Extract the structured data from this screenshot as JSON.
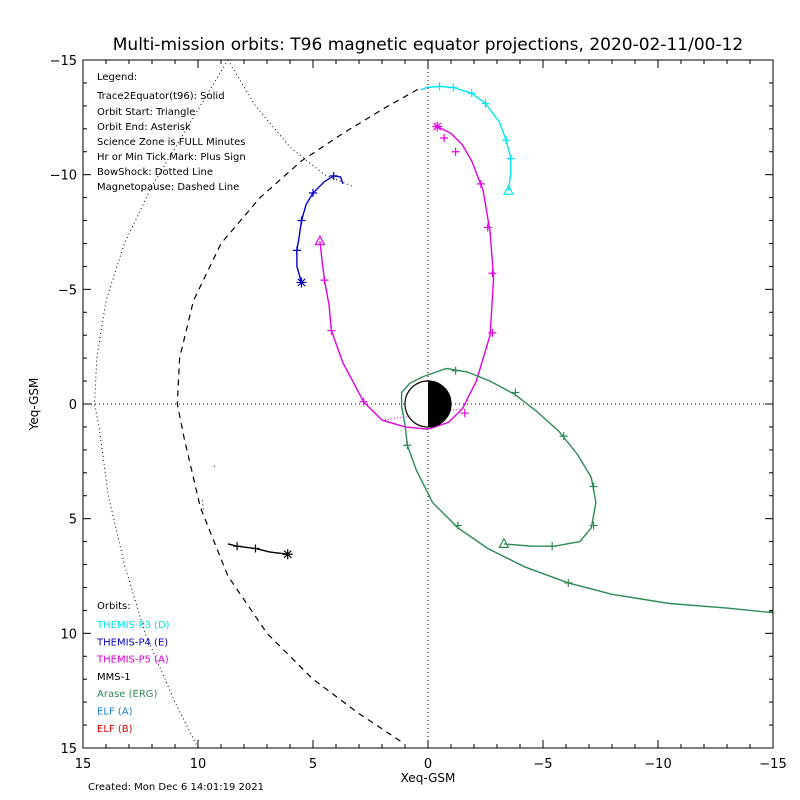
{
  "chart_data": {
    "type": "line",
    "title": "Multi-mission orbits: T96 magnetic equator projections, 2020-02-11/00-12",
    "xlabel": "Xeq-GSM",
    "ylabel": "Yeq-GSM",
    "xlim": [
      15,
      -15
    ],
    "ylim": [
      -15,
      15
    ],
    "xticks": [
      15,
      10,
      5,
      0,
      -5,
      -10,
      -15
    ],
    "yticks": [
      -15,
      -10,
      -5,
      0,
      5,
      10,
      15
    ],
    "grid": false,
    "legend": {
      "heading": "Legend:",
      "lines": [
        "Trace2Equator(t96): Solid",
        "Orbit Start: Triangle",
        "Orbit End: Asterisk",
        "Science Zone is FULL Minutes",
        "Hr or Min Tick Mark: Plus Sign",
        "BowShock: Dotted Line",
        "Magnetopause: Dashed Line"
      ]
    },
    "orbits_heading": "Orbits:",
    "missions": [
      {
        "label": "THEMIS-P3 (D)",
        "color": "#00e5ee"
      },
      {
        "label": "THEMIS-P4 (E)",
        "color": "#0000cc"
      },
      {
        "label": "THEMIS-P5 (A)",
        "color": "#e000e0"
      },
      {
        "label": "MMS-1",
        "color": "#000000"
      },
      {
        "label": "Arase (ERG)",
        "color": "#2e8b57"
      },
      {
        "label": "ELF (A)",
        "color": "#1e7fdc"
      },
      {
        "label": "ELF (B)",
        "color": "#dd0000"
      }
    ],
    "series": [
      {
        "name": "THEMIS-P3 (D)",
        "color": "#00e5ee",
        "style": "solid",
        "points": [
          [
            -3.5,
            -9.3
          ],
          [
            -3.6,
            -10.1
          ],
          [
            -3.6,
            -10.7
          ],
          [
            -3.4,
            -11.5
          ],
          [
            -3.1,
            -12.3
          ],
          [
            -2.5,
            -13.1
          ],
          [
            -1.9,
            -13.55
          ],
          [
            -1.1,
            -13.8
          ],
          [
            -0.5,
            -13.85
          ],
          [
            0.05,
            -13.8
          ],
          [
            0.3,
            -13.7
          ]
        ],
        "ticks": [
          [
            -3.6,
            -10.7
          ],
          [
            -3.4,
            -11.5
          ],
          [
            -2.5,
            -13.1
          ],
          [
            -1.9,
            -13.55
          ],
          [
            -1.1,
            -13.8
          ],
          [
            -0.5,
            -13.85
          ]
        ],
        "start": [
          -3.5,
          -9.3
        ],
        "end": null
      },
      {
        "name": "THEMIS-P4 (E)",
        "color": "#0000cc",
        "style": "solid",
        "points": [
          [
            5.5,
            -5.3
          ],
          [
            5.7,
            -6.0
          ],
          [
            5.7,
            -6.7
          ],
          [
            5.6,
            -7.3
          ],
          [
            5.5,
            -8.0
          ],
          [
            5.3,
            -8.7
          ],
          [
            5.0,
            -9.2
          ],
          [
            4.5,
            -9.7
          ],
          [
            4.1,
            -9.95
          ],
          [
            3.8,
            -9.9
          ],
          [
            3.7,
            -9.6
          ]
        ],
        "ticks": [
          [
            5.7,
            -6.7
          ],
          [
            5.5,
            -8.0
          ],
          [
            5.0,
            -9.2
          ],
          [
            4.1,
            -9.95
          ]
        ],
        "start": null,
        "end": [
          5.5,
          -5.3
        ]
      },
      {
        "name": "THEMIS-P5 (A)",
        "color": "#e000e0",
        "style": "solid",
        "points": [
          [
            4.7,
            -7.1
          ],
          [
            4.6,
            -6.2
          ],
          [
            4.5,
            -5.4
          ],
          [
            4.3,
            -4.3
          ],
          [
            4.2,
            -3.2
          ],
          [
            3.7,
            -1.8
          ],
          [
            2.8,
            -0.1
          ],
          [
            2.0,
            0.7
          ],
          [
            1.0,
            1.0
          ],
          [
            0.0,
            1.1
          ],
          [
            -0.9,
            0.8
          ],
          [
            -1.5,
            0.2
          ],
          [
            -2.1,
            -1.0
          ],
          [
            -2.7,
            -3.0
          ],
          [
            -2.85,
            -5.5
          ],
          [
            -2.7,
            -7.5
          ],
          [
            -2.4,
            -9.3
          ],
          [
            -1.9,
            -10.6
          ],
          [
            -1.5,
            -11.3
          ],
          [
            -1.0,
            -11.8
          ],
          [
            -0.4,
            -12.1
          ]
        ],
        "dotted_between": [
          [
            2.0,
            0.7
          ],
          [
            -1.5,
            0.2
          ]
        ],
        "ticks": [
          [
            4.5,
            -5.4
          ],
          [
            4.2,
            -3.2
          ],
          [
            2.8,
            -0.1
          ],
          [
            -1.6,
            0.4
          ],
          [
            -2.8,
            -3.1
          ],
          [
            -2.8,
            -5.7
          ],
          [
            -2.6,
            -7.7
          ],
          [
            -2.3,
            -9.6
          ],
          [
            -1.2,
            -11.0
          ],
          [
            -0.7,
            -11.6
          ]
        ],
        "start": [
          4.7,
          -7.1
        ],
        "end": [
          -0.4,
          -12.1
        ]
      },
      {
        "name": "MMS-1",
        "color": "#000000",
        "style": "solid",
        "points": [
          [
            8.7,
            6.1
          ],
          [
            8.3,
            6.2
          ],
          [
            7.5,
            6.3
          ],
          [
            6.9,
            6.45
          ],
          [
            6.1,
            6.55
          ]
        ],
        "ticks": [
          [
            8.3,
            6.2
          ],
          [
            7.5,
            6.3
          ]
        ],
        "start": null,
        "end": [
          6.1,
          6.55
        ]
      },
      {
        "name": "Arase (ERG)",
        "color": "#2e8b57",
        "style": "solid",
        "points": [
          [
            -3.3,
            6.1
          ],
          [
            -4.5,
            6.2
          ],
          [
            -5.5,
            6.2
          ],
          [
            -6.6,
            6.0
          ],
          [
            -7.1,
            5.4
          ],
          [
            -7.3,
            4.3
          ],
          [
            -7.1,
            3.2
          ],
          [
            -6.5,
            2.2
          ],
          [
            -5.7,
            1.2
          ],
          [
            -4.7,
            0.3
          ],
          [
            -3.8,
            -0.4
          ],
          [
            -2.7,
            -1.0
          ],
          [
            -1.7,
            -1.4
          ],
          [
            -0.8,
            -1.55
          ],
          [
            0.2,
            -1.2
          ],
          [
            0.8,
            -0.9
          ],
          [
            1.15,
            -0.5
          ],
          [
            1.15,
            0.1
          ],
          [
            1.0,
            0.9
          ],
          [
            0.9,
            1.8
          ],
          [
            0.5,
            2.9
          ],
          [
            -0.2,
            4.3
          ],
          [
            -1.3,
            5.4
          ],
          [
            -2.6,
            6.3
          ],
          [
            -4.2,
            7.1
          ],
          [
            -6.1,
            7.8
          ],
          [
            -8.0,
            8.3
          ],
          [
            -10.5,
            8.7
          ],
          [
            -13.0,
            8.9
          ],
          [
            -15.0,
            9.1
          ]
        ],
        "ticks": [
          [
            -5.4,
            6.2
          ],
          [
            -7.2,
            5.3
          ],
          [
            -7.2,
            3.6
          ],
          [
            -5.9,
            1.4
          ],
          [
            -3.8,
            -0.5
          ],
          [
            -1.2,
            -1.45
          ],
          [
            0.9,
            1.8
          ],
          [
            -1.3,
            5.3
          ],
          [
            -6.1,
            7.8
          ],
          [
            -15.0,
            9.05
          ]
        ],
        "start": [
          -3.3,
          6.1
        ],
        "end": null
      }
    ],
    "bowshock": {
      "style": "dotted",
      "points": [
        [
          8.7,
          -15.0
        ],
        [
          7.5,
          -13.0
        ],
        [
          6.0,
          -11.2
        ],
        [
          4.5,
          -10.0
        ],
        [
          3.3,
          -9.5
        ]
      ],
      "outer": [
        [
          10.0,
          15.0
        ],
        [
          11.0,
          13.0
        ],
        [
          12.3,
          10.0
        ],
        [
          13.2,
          7.0
        ],
        [
          13.9,
          4.0
        ],
        [
          14.3,
          1.0
        ],
        [
          14.5,
          0.0
        ],
        [
          14.4,
          -2.0
        ],
        [
          14.0,
          -4.5
        ],
        [
          13.2,
          -7.0
        ],
        [
          12.0,
          -9.5
        ],
        [
          10.5,
          -12.0
        ],
        [
          8.7,
          -15.0
        ]
      ],
      "fragments": [
        [
          [
            9.3,
            2.7
          ],
          [
            9.25,
            2.8
          ]
        ],
        [
          [
            9.8,
            4.2
          ],
          [
            9.78,
            4.6
          ]
        ]
      ]
    },
    "magnetopause": {
      "style": "dashed",
      "points": [
        [
          1.2,
          14.7
        ],
        [
          3.0,
          13.5
        ],
        [
          5.0,
          12.0
        ],
        [
          7.0,
          10.0
        ],
        [
          8.7,
          7.5
        ],
        [
          9.9,
          4.5
        ],
        [
          10.6,
          1.5
        ],
        [
          10.9,
          0.0
        ],
        [
          10.8,
          -2.0
        ],
        [
          10.2,
          -4.5
        ],
        [
          9.0,
          -7.0
        ],
        [
          7.3,
          -9.0
        ],
        [
          5.5,
          -10.6
        ],
        [
          3.7,
          -11.8
        ],
        [
          1.9,
          -12.9
        ],
        [
          0.3,
          -13.8
        ]
      ]
    },
    "earth": {
      "center": [
        0,
        0
      ],
      "radius": 1
    }
  },
  "footer": {
    "created": "Created: Mon Dec  6 14:01:19 2021"
  }
}
